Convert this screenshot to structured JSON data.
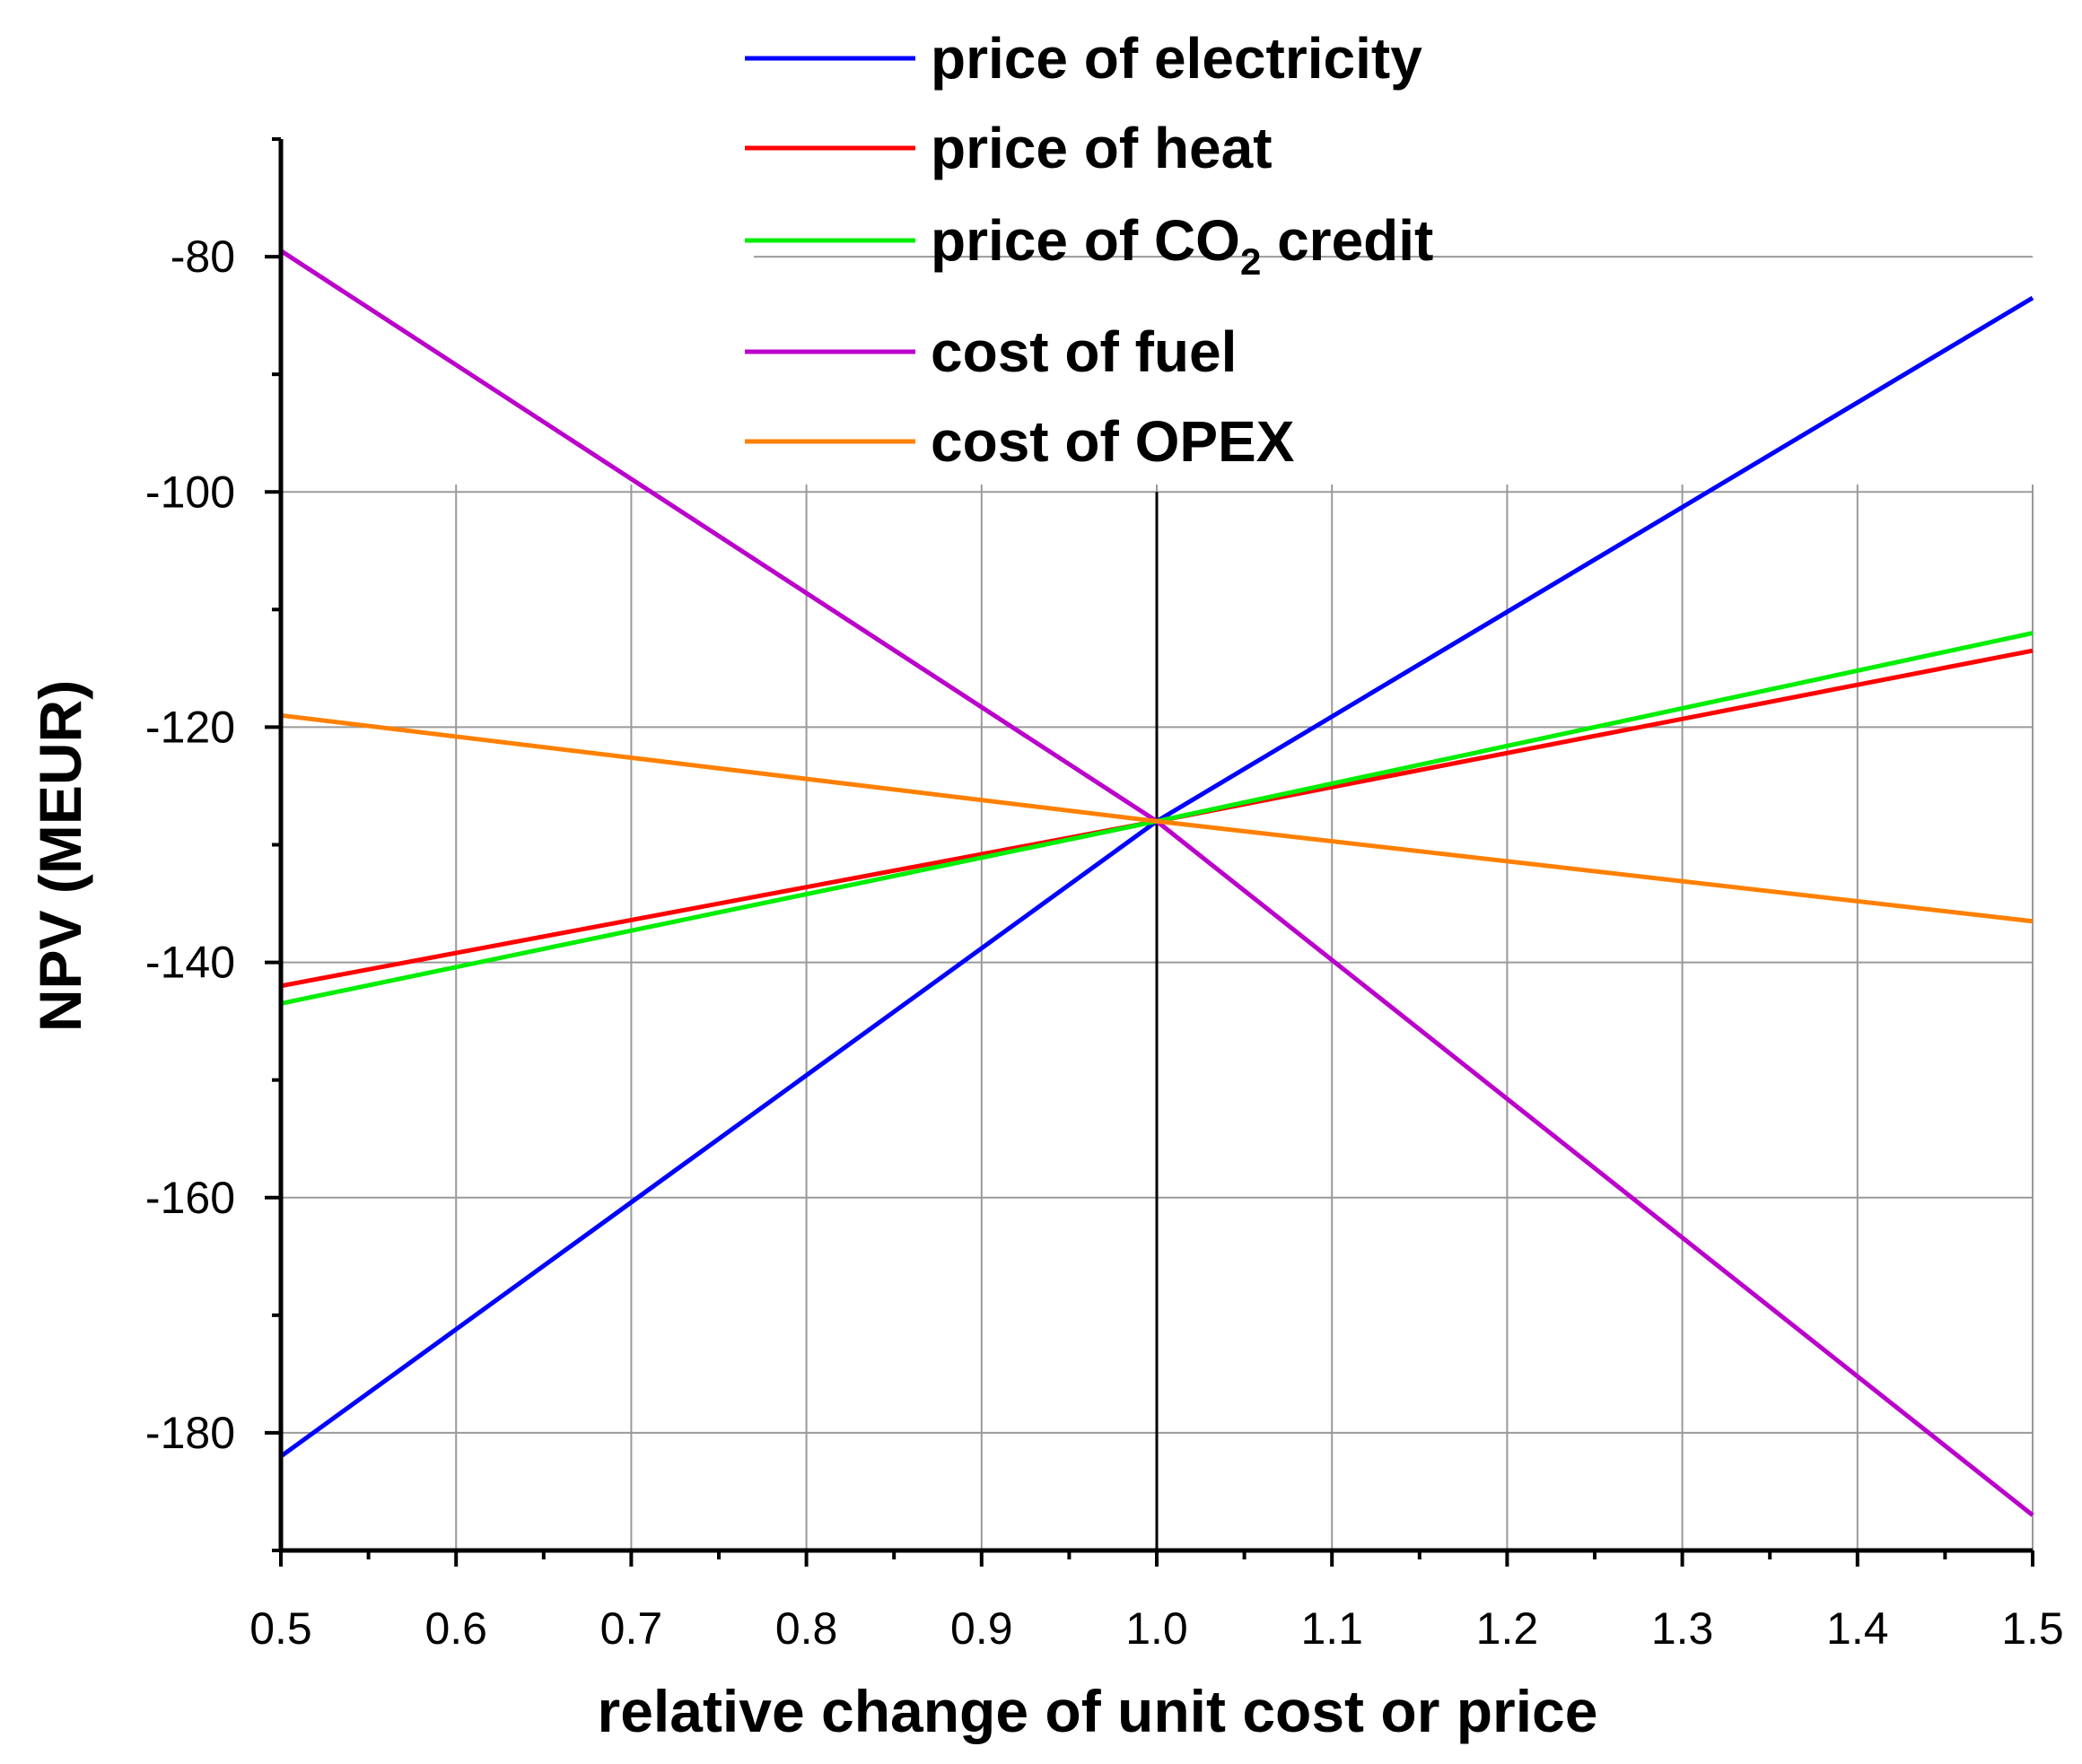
{
  "chart_data": {
    "type": "line",
    "title": "",
    "xlabel": "relative change of unit cost or price",
    "ylabel": "NPV (MEUR)",
    "xlim": [
      0.5,
      1.5
    ],
    "ylim": [
      -190,
      -70
    ],
    "x_ticks": [
      0.5,
      0.6,
      0.7,
      0.8,
      0.9,
      1.0,
      1.1,
      1.2,
      1.3,
      1.4,
      1.5
    ],
    "x_tick_labels": [
      "0.5",
      "0.6",
      "0.7",
      "0.8",
      "0.9",
      "1.0",
      "1.1",
      "1.2",
      "1.3",
      "1.4",
      "1.5"
    ],
    "y_ticks": [
      -180,
      -160,
      -140,
      -120,
      -100,
      -80
    ],
    "y_tick_labels": [
      "-180",
      "-160",
      "-140",
      "-120",
      "-100",
      "-80"
    ],
    "grid": true,
    "legend_position": "top",
    "x": [
      0.5,
      1.0,
      1.5
    ],
    "series": [
      {
        "name": "price of electricity",
        "color": "#0000ff",
        "values": [
          -182,
          -128,
          -83.5
        ]
      },
      {
        "name": "price of heat",
        "color": "#ff0000",
        "values": [
          -142,
          -128,
          -113.5
        ]
      },
      {
        "name": "price of CO2 credit",
        "name_main": "price of CO",
        "name_sub": "2",
        "name_tail": " credit",
        "color": "#00ee00",
        "values": [
          -143.5,
          -128,
          -112
        ]
      },
      {
        "name": "cost of fuel",
        "color": "#bb00cc",
        "values": [
          -79.5,
          -128,
          -187
        ]
      },
      {
        "name": "cost of OPEX",
        "color": "#ff8000",
        "values": [
          -119,
          -128,
          -136.5
        ]
      }
    ]
  }
}
